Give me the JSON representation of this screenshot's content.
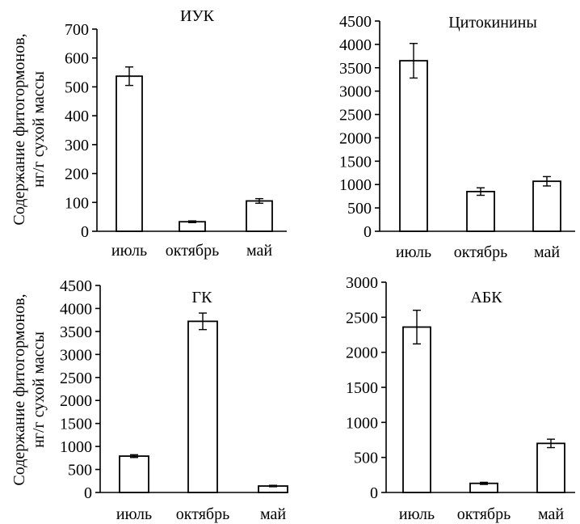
{
  "y_label_line1": "Содержание фитогормонов,",
  "y_label_line2": "нг/г сухой массы",
  "chart_data": [
    {
      "type": "bar",
      "title": "ИУК",
      "categories": [
        "июль",
        "октябрь",
        "май"
      ],
      "values": [
        537,
        33,
        105
      ],
      "errors": [
        32,
        3,
        8
      ],
      "ylim": [
        0,
        700
      ],
      "yticks": [
        0,
        100,
        200,
        300,
        400,
        500,
        600,
        700
      ],
      "ylabel": "Содержание фитогормонов, нг/г сухой массы"
    },
    {
      "type": "bar",
      "title": "Цитокинины",
      "categories": [
        "июль",
        "октябрь",
        "май"
      ],
      "values": [
        3650,
        850,
        1070
      ],
      "errors": [
        370,
        80,
        100
      ],
      "ylim": [
        0,
        4500
      ],
      "yticks": [
        0,
        500,
        1000,
        1500,
        2000,
        2500,
        3000,
        3500,
        4000,
        4500
      ]
    },
    {
      "type": "bar",
      "title": "ГК",
      "categories": [
        "июль",
        "октябрь",
        "май"
      ],
      "values": [
        790,
        3720,
        140
      ],
      "errors": [
        30,
        180,
        15
      ],
      "ylim": [
        0,
        4500
      ],
      "yticks": [
        0,
        500,
        1000,
        1500,
        2000,
        2500,
        3000,
        3500,
        4000,
        4500
      ],
      "ylabel": "Содержание фитогормонов, нг/г сухой массы"
    },
    {
      "type": "bar",
      "title": "АБК",
      "categories": [
        "июль",
        "октябрь",
        "май"
      ],
      "values": [
        2360,
        130,
        700
      ],
      "errors": [
        240,
        15,
        60
      ],
      "ylim": [
        0,
        3000
      ],
      "yticks": [
        0,
        500,
        1000,
        1500,
        2000,
        2500,
        3000
      ]
    }
  ]
}
